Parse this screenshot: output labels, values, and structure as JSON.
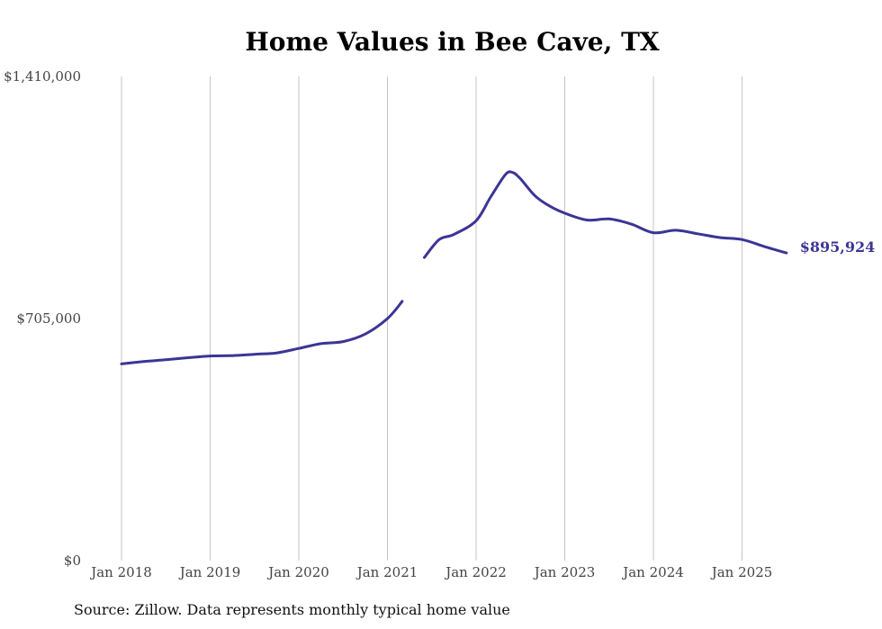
{
  "chart_data": {
    "type": "line",
    "title": "Home Values in Bee Cave, TX",
    "source": "Source: Zillow. Data represents monthly typical home value",
    "xlabel": "",
    "ylabel": "",
    "ylim": [
      0,
      1410000
    ],
    "yticks": [
      {
        "value": 0,
        "label": "$0"
      },
      {
        "value": 705000,
        "label": "$705,000"
      },
      {
        "value": 1410000,
        "label": "$1,410,000"
      }
    ],
    "xticks": [
      {
        "date": "2018-01",
        "label": "Jan 2018"
      },
      {
        "date": "2019-01",
        "label": "Jan 2019"
      },
      {
        "date": "2020-01",
        "label": "Jan 2020"
      },
      {
        "date": "2021-01",
        "label": "Jan 2021"
      },
      {
        "date": "2022-01",
        "label": "Jan 2022"
      },
      {
        "date": "2023-01",
        "label": "Jan 2023"
      },
      {
        "date": "2024-01",
        "label": "Jan 2024"
      },
      {
        "date": "2025-01",
        "label": "Jan 2025"
      }
    ],
    "xlim": [
      "2018-01",
      "2025-08"
    ],
    "grid": "vertical",
    "line_color": "#3b3596",
    "end_label": "$895,924",
    "series": [
      {
        "segments": [
          [
            {
              "x": "2018-01",
              "y": 573000
            },
            {
              "x": "2018-04",
              "y": 580000
            },
            {
              "x": "2018-07",
              "y": 585000
            },
            {
              "x": "2018-10",
              "y": 591000
            },
            {
              "x": "2019-01",
              "y": 596000
            },
            {
              "x": "2019-04",
              "y": 597000
            },
            {
              "x": "2019-07",
              "y": 601000
            },
            {
              "x": "2019-10",
              "y": 605000
            },
            {
              "x": "2020-01",
              "y": 618000
            },
            {
              "x": "2020-04",
              "y": 632000
            },
            {
              "x": "2020-07",
              "y": 638000
            },
            {
              "x": "2020-10",
              "y": 660000
            },
            {
              "x": "2021-01",
              "y": 705000
            },
            {
              "x": "2021-03",
              "y": 755000
            }
          ],
          [
            {
              "x": "2021-06",
              "y": 883000
            },
            {
              "x": "2021-08",
              "y": 935000
            },
            {
              "x": "2021-10",
              "y": 950000
            },
            {
              "x": "2022-01",
              "y": 990000
            },
            {
              "x": "2022-03",
              "y": 1060000
            },
            {
              "x": "2022-05",
              "y": 1125000
            },
            {
              "x": "2022-06",
              "y": 1130000
            },
            {
              "x": "2022-07",
              "y": 1112000
            },
            {
              "x": "2022-09",
              "y": 1062000
            },
            {
              "x": "2022-11",
              "y": 1032000
            },
            {
              "x": "2023-01",
              "y": 1012000
            },
            {
              "x": "2023-04",
              "y": 992000
            },
            {
              "x": "2023-07",
              "y": 995000
            },
            {
              "x": "2023-10",
              "y": 980000
            },
            {
              "x": "2024-01",
              "y": 955000
            },
            {
              "x": "2024-04",
              "y": 962000
            },
            {
              "x": "2024-07",
              "y": 952000
            },
            {
              "x": "2024-10",
              "y": 941000
            },
            {
              "x": "2025-01",
              "y": 935000
            },
            {
              "x": "2025-04",
              "y": 915000
            },
            {
              "x": "2025-07",
              "y": 896000
            }
          ]
        ]
      }
    ]
  }
}
